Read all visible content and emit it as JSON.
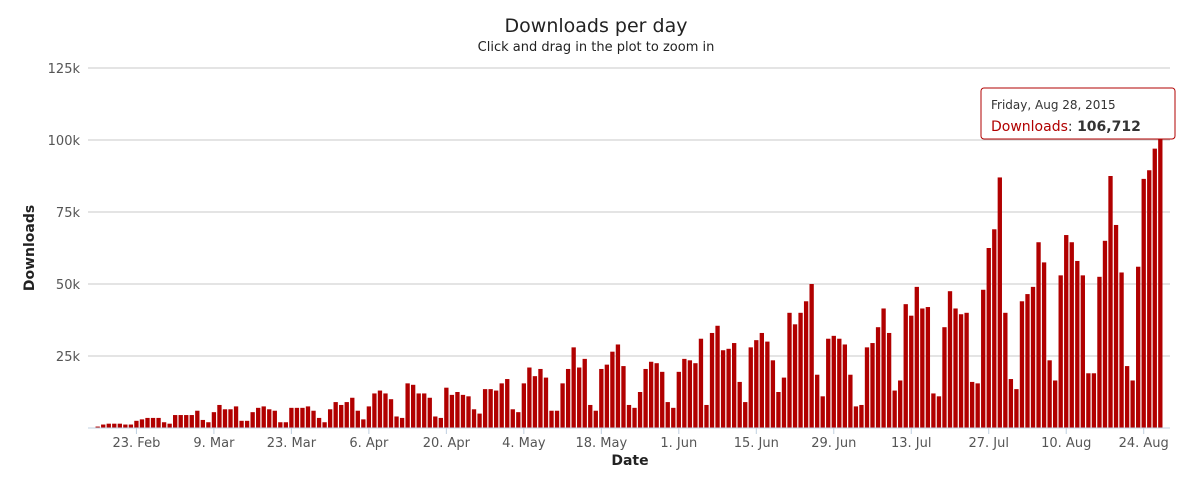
{
  "chart_data": {
    "type": "bar",
    "title": "Downloads per day",
    "subtitle": "Click and drag in the plot to zoom in",
    "xlabel": "Date",
    "ylabel": "Downloads",
    "ylim": [
      0,
      125000
    ],
    "y_ticks": [
      {
        "value": 0,
        "label": ""
      },
      {
        "value": 25000,
        "label": "25k"
      },
      {
        "value": 50000,
        "label": "50k"
      },
      {
        "value": 75000,
        "label": "75k"
      },
      {
        "value": 100000,
        "label": "100k"
      },
      {
        "value": 125000,
        "label": "125k"
      }
    ],
    "x_ticks": [
      "23. Feb",
      "9. Mar",
      "23. Mar",
      "6. Apr",
      "20. Apr",
      "4. May",
      "18. May",
      "1. Jun",
      "15. Jun",
      "29. Jun",
      "13. Jul",
      "27. Jul",
      "10. Aug",
      "24. Aug"
    ],
    "first_date": "2015-02-16",
    "bar_color": "#b10000",
    "grid": true,
    "series": [
      {
        "name": "Downloads",
        "values": [
          500,
          1200,
          1500,
          1500,
          1500,
          1200,
          1200,
          2500,
          3000,
          3500,
          3500,
          3500,
          2000,
          1500,
          4500,
          4500,
          4500,
          4500,
          6000,
          2800,
          2000,
          5500,
          8000,
          6500,
          6500,
          7500,
          2500,
          2500,
          5500,
          7000,
          7500,
          6500,
          6000,
          2000,
          2000,
          7000,
          7000,
          7000,
          7500,
          6000,
          3500,
          2000,
          6500,
          9000,
          8000,
          9000,
          10500,
          6000,
          3000,
          7500,
          12000,
          13000,
          12000,
          10000,
          4000,
          3500,
          15500,
          15000,
          12000,
          12000,
          10500,
          4000,
          3500,
          14000,
          11500,
          12500,
          11500,
          11000,
          6500,
          5000,
          13500,
          13500,
          13000,
          15500,
          17000,
          6500,
          5500,
          15500,
          21000,
          18000,
          20500,
          17500,
          6000,
          6000,
          15500,
          20500,
          28000,
          21000,
          24000,
          8000,
          6000,
          20500,
          22000,
          26500,
          29000,
          21500,
          8000,
          7000,
          12500,
          20500,
          23000,
          22500,
          19500,
          9000,
          7000,
          19500,
          24000,
          23500,
          22500,
          31000,
          8000,
          33000,
          35500,
          27000,
          27500,
          29500,
          16000,
          9000,
          28000,
          30500,
          33000,
          30000,
          23500,
          12500,
          17500,
          40000,
          36000,
          40000,
          44000,
          50000,
          18500,
          11000,
          31000,
          32000,
          31000,
          29000,
          18500,
          7500,
          8000,
          28000,
          29500,
          35000,
          41500,
          33000,
          13000,
          16500,
          43000,
          39000,
          49000,
          41500,
          42000,
          12000,
          11000,
          35000,
          47500,
          41500,
          39500,
          40000,
          16000,
          15500,
          48000,
          62500,
          69000,
          87000,
          40000,
          17000,
          13500,
          44000,
          46500,
          49000,
          64500,
          57500,
          23500,
          16500,
          53000,
          67000,
          64500,
          58000,
          53000,
          19000,
          19000,
          52500,
          65000,
          87500,
          70500,
          54000,
          21500,
          16500,
          56000,
          86500,
          89500,
          97000,
          106712
        ]
      }
    ]
  },
  "tooltip": {
    "date": "Friday, Aug 28, 2015",
    "series_label": "Downloads",
    "separator": ": ",
    "value": "106,712"
  }
}
